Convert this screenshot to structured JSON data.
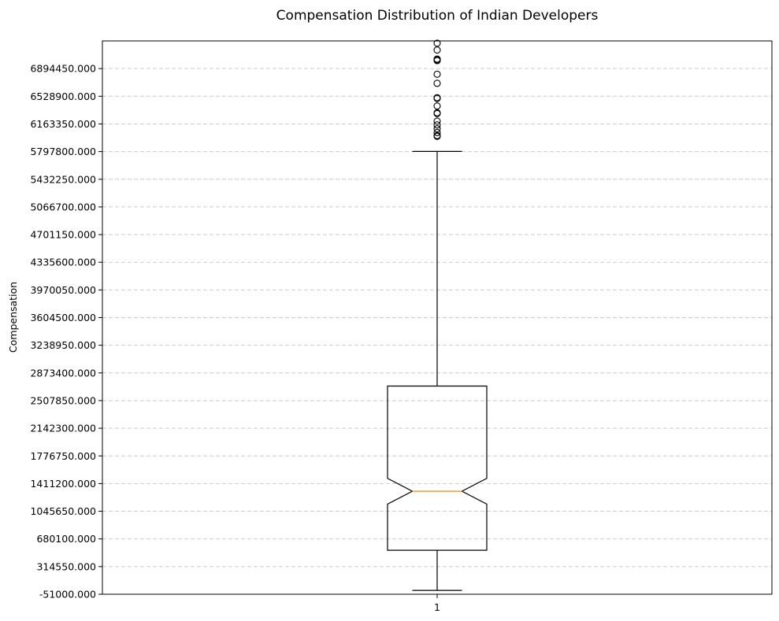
{
  "chart_data": {
    "type": "boxplot",
    "title": "Compensation Distribution of Indian Developers",
    "xlabel": "",
    "ylabel": "Compensation",
    "ylim": [
      -51000,
      7260000
    ],
    "yticks": [
      -51000,
      314550,
      680100,
      1045650,
      1411200,
      1776750,
      2142300,
      2507850,
      2873400,
      3238950,
      3604500,
      3970050,
      4335600,
      4701150,
      5066700,
      5432250,
      5797800,
      6163350,
      6528900,
      6894450
    ],
    "ytick_labels": [
      "-51000.000",
      "314550.000",
      "680100.000",
      "1045650.000",
      "1411200.000",
      "1776750.000",
      "2142300.000",
      "2507850.000",
      "2873400.000",
      "3238950.000",
      "3604500.000",
      "3970050.000",
      "4335600.000",
      "4701150.000",
      "5066700.000",
      "5432250.000",
      "5797800.000",
      "6163350.000",
      "6528900.000",
      "6894450.000"
    ],
    "categories": [
      "1"
    ],
    "grid": "y-dashed",
    "notch": true,
    "boxes": [
      {
        "category": "1",
        "whisker_low": 0,
        "q1": 530000,
        "median": 1310000,
        "q3": 2700000,
        "whisker_high": 5800000,
        "notch_low": 1140000,
        "notch_high": 1480000,
        "outliers": [
          6000000,
          6010000,
          6050000,
          6100000,
          6150000,
          6200000,
          6300000,
          6310000,
          6400000,
          6500000,
          6510000,
          6700000,
          6820000,
          7000000,
          7010000,
          7020000,
          7140000,
          7230000
        ]
      }
    ],
    "colors": {
      "box": "#000000",
      "median": "#ff7f0e",
      "grid": "#cccccc",
      "background": "#ffffff"
    }
  }
}
